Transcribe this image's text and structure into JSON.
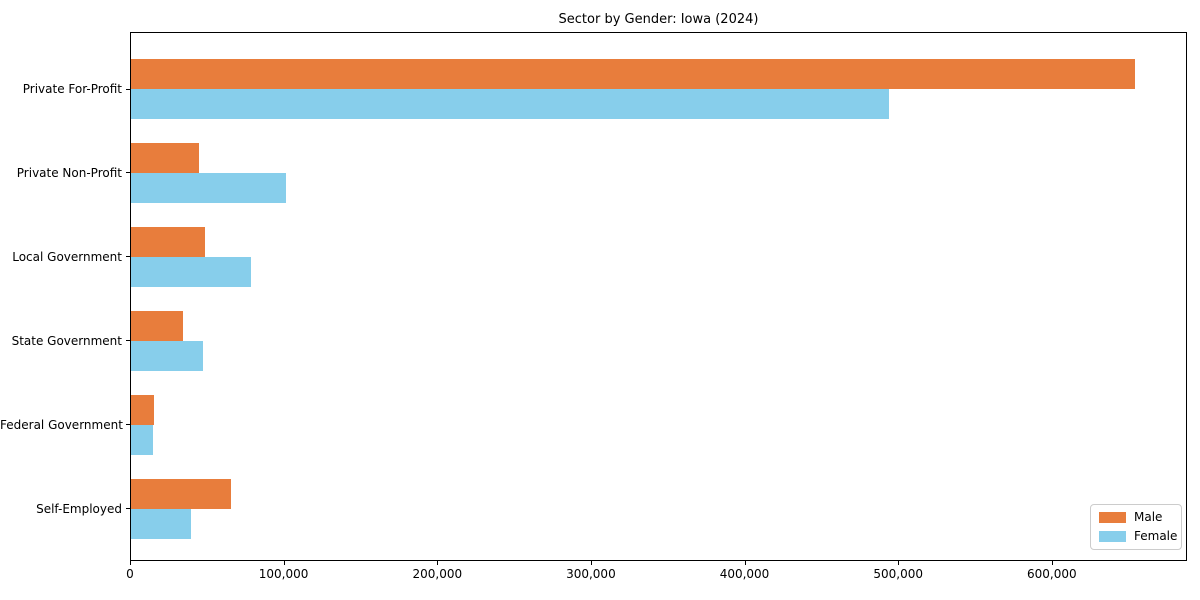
{
  "chart_data": {
    "type": "bar",
    "orientation": "horizontal",
    "title": "Sector by Gender: Iowa (2024)",
    "xlabel": "",
    "ylabel": "",
    "categories": [
      "Private For-Profit",
      "Private Non-Profit",
      "Local Government",
      "State Government",
      "Federal Government",
      "Self-Employed"
    ],
    "series": [
      {
        "name": "Male",
        "color": "#e87d3c",
        "values": [
          655000,
          44000,
          48000,
          34000,
          15000,
          65000
        ]
      },
      {
        "name": "Female",
        "color": "#87ceeb",
        "values": [
          494000,
          101000,
          78000,
          47000,
          14000,
          39000
        ]
      }
    ],
    "xlim": [
      0,
      688000
    ],
    "xticks": [
      0,
      100000,
      200000,
      300000,
      400000,
      500000,
      600000
    ],
    "xtick_labels": [
      "0",
      "100,000",
      "200,000",
      "300,000",
      "400,000",
      "500,000",
      "600,000"
    ],
    "grid": false,
    "legend_position": "lower right"
  }
}
